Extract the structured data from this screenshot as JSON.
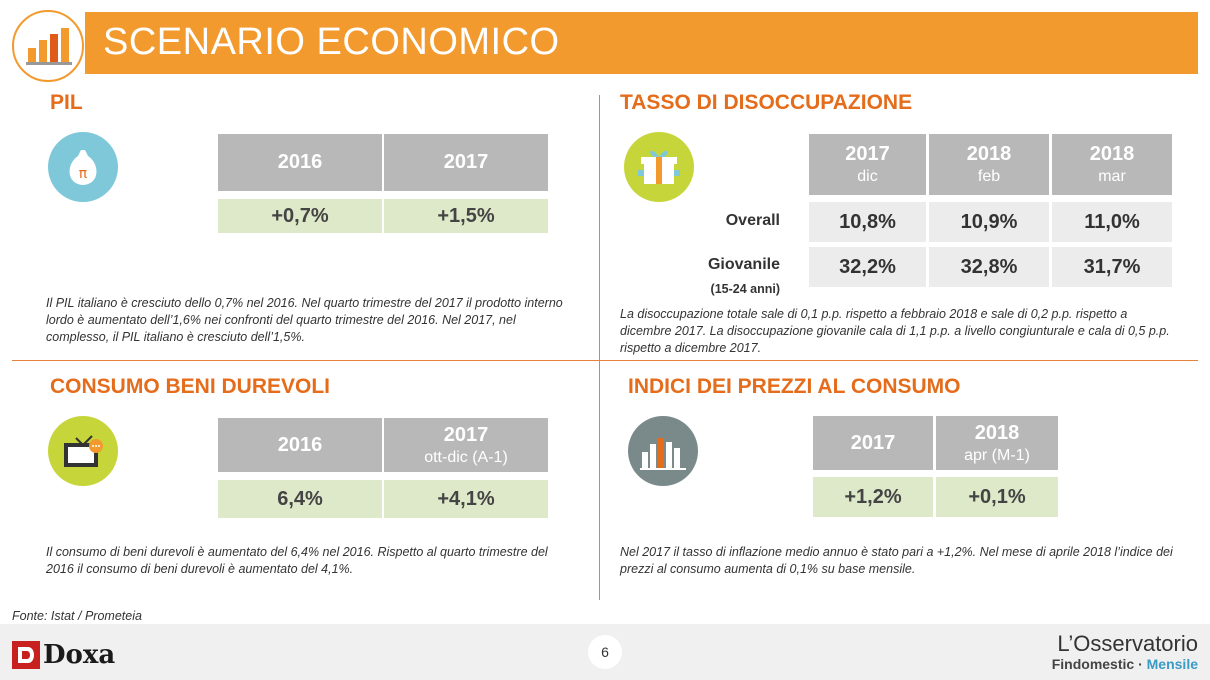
{
  "header": {
    "title": "SCENARIO ECONOMICO"
  },
  "pil": {
    "title": "PIL",
    "headers": [
      "2016",
      "2017"
    ],
    "values": [
      "+0,7%",
      "+1,5%"
    ],
    "note": "Il PIL italiano è cresciuto dello 0,7% nel 2016. Nel quarto trimestre del 2017 il prodotto interno lordo è aumentato dell’1,6% nei confronti del quarto trimestre del 2016. Nel 2017, nel complesso, il PIL italiano è cresciuto dell’1,5%."
  },
  "disoccupazione": {
    "title": "TASSO DI DISOCCUPAZIONE",
    "headers": [
      {
        "year": "2017",
        "sub": "dic"
      },
      {
        "year": "2018",
        "sub": "feb"
      },
      {
        "year": "2018",
        "sub": "mar"
      }
    ],
    "rows": [
      {
        "label": "Overall",
        "sublabel": "",
        "values": [
          "10,8%",
          "10,9%",
          "11,0%"
        ]
      },
      {
        "label": "Giovanile",
        "sublabel": "(15-24 anni)",
        "values": [
          "32,2%",
          "32,8%",
          "31,7%"
        ]
      }
    ],
    "note": "La disoccupazione totale sale di 0,1 p.p. rispetto a febbraio 2018 e sale di 0,2 p.p. rispetto a dicembre 2017. La disoccupazione giovanile cala di 1,1 p.p. a livello congiunturale e cala di 0,5 p.p. rispetto a dicembre 2017."
  },
  "consumo": {
    "title": "CONSUMO BENI DUREVOLI",
    "headers": [
      {
        "year": "2016",
        "sub": ""
      },
      {
        "year": "2017",
        "sub": "ott-dic (A-1)"
      }
    ],
    "values": [
      "6,4%",
      "+4,1%"
    ],
    "note": "Il consumo di beni durevoli è aumentato del 6,4% nel 2016. Rispetto al quarto trimestre del 2016 il consumo di beni durevoli è aumentato del 4,1%."
  },
  "prezzi": {
    "title": "INDICI DEI PREZZI AL CONSUMO",
    "headers": [
      {
        "year": "2017",
        "sub": ""
      },
      {
        "year": "2018",
        "sub": "apr (M-1)"
      }
    ],
    "values": [
      "+1,2%",
      "+0,1%"
    ],
    "note": "Nel 2017 il tasso di inflazione medio annuo è stato pari a +1,2%. Nel mese di aprile 2018 l’indice dei prezzi al consumo aumenta di 0,1% su base mensile."
  },
  "footer": {
    "source": "Fonte: Istat / Prometeia",
    "page": "6",
    "brand_left": "Doxa",
    "brand_right_title": "L’Osservatorio",
    "brand_right_sub1": "Findomestic",
    "brand_right_sep": " · ",
    "brand_right_sub2": "Mensile"
  },
  "colors": {
    "accent": "#f29a2e",
    "title": "#e46c1b",
    "header_cell": "#b8b8b8",
    "green_cell": "#dde9c8",
    "grey_cell": "#ececec"
  },
  "icons": [
    "chart-logo-icon",
    "money-bag-icon",
    "gift-box-icon",
    "tv-icon",
    "city-buildings-icon"
  ]
}
